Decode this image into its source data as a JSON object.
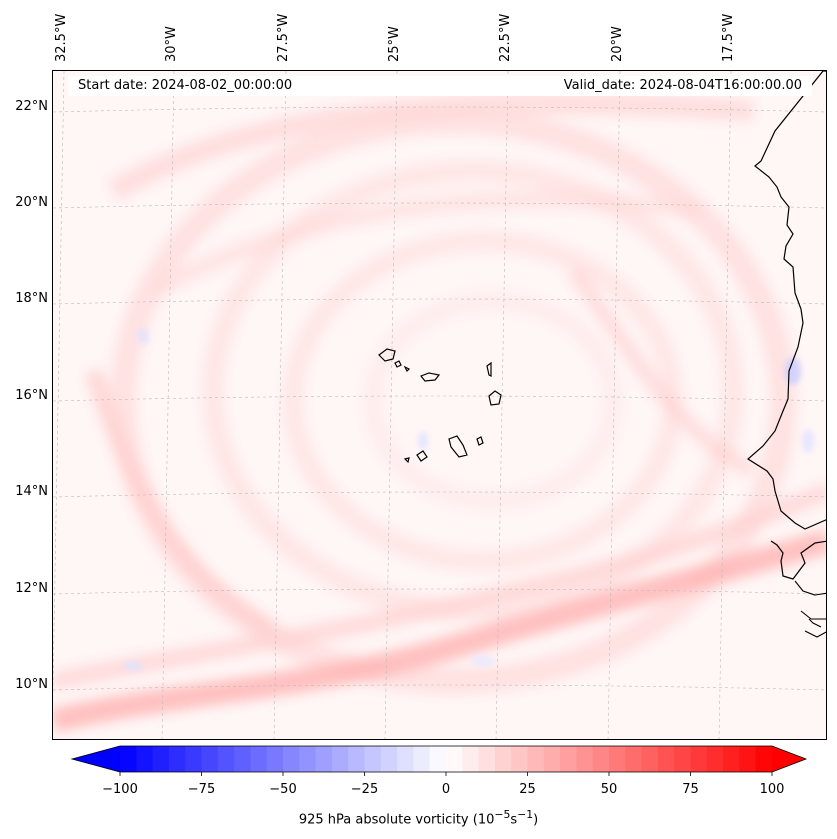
{
  "map": {
    "header": {
      "start_date": "Start date: 2024-08-02_00:00:00",
      "valid_date": "Valid_date: 2024-08-04T16:00:00.00"
    },
    "longitude_labels": [
      "32.5°W",
      "30°W",
      "27.5°W",
      "25°W",
      "22.5°W",
      "20°W",
      "17.5°W"
    ],
    "latitude_labels": [
      "22°N",
      "20°N",
      "18°N",
      "16°N",
      "14°N",
      "12°N",
      "10°N"
    ],
    "extent": {
      "lon_min": -33.0,
      "lon_max": -15.0,
      "lat_min": 8.9,
      "lat_max": 22.8
    },
    "colorbar": {
      "label_prefix": "925 hPa absolute vorticity (10",
      "label_suffix": "s",
      "label_exp1": "−5",
      "label_exp2": "−1",
      "label_close": ")",
      "min": -100,
      "max": 100,
      "ticks": [
        "−100",
        "−75",
        "−50",
        "−25",
        "0",
        "25",
        "50",
        "75",
        "100"
      ],
      "extend": "both",
      "colors": {
        "negative": "#0000ff",
        "positive": "#ff0000",
        "neutral": "#ffffff"
      }
    },
    "gridlines": "dashed-gray"
  }
}
